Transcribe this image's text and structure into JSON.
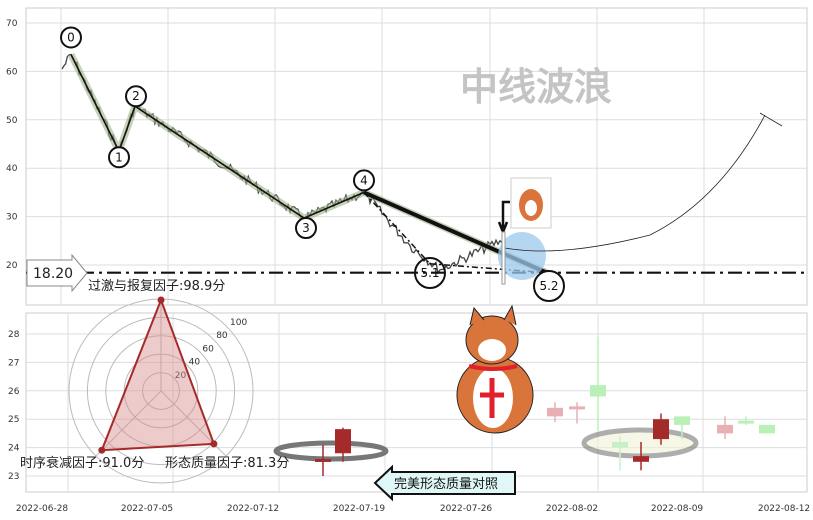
{
  "chart_data": [
    {
      "type": "line",
      "panel": "wave",
      "y_ticks": [
        "70",
        "60",
        "50",
        "40",
        "30",
        "20"
      ],
      "ylim": [
        17,
        73
      ],
      "grid": true,
      "watermark": "中线波浪",
      "wave_points": [
        {
          "label": "0",
          "value": 63.5
        },
        {
          "label": "1",
          "value": 43.5
        },
        {
          "label": "2",
          "value": 52.8
        },
        {
          "label": "3",
          "value": 29.7
        },
        {
          "label": "4",
          "value": 35.0
        },
        {
          "label": "5.1",
          "value": 18.6
        },
        {
          "label": "5.2",
          "value": 18.4
        }
      ],
      "support_line": {
        "value": 18.2,
        "label": "18.20"
      },
      "factor_text": "过激与报复因子:98.9分"
    },
    {
      "type": "candlestick",
      "panel": "kline",
      "y_ticks": [
        "28",
        "27",
        "26",
        "25",
        "24",
        "23"
      ],
      "ylim": [
        22.2,
        28.9
      ],
      "grid": true,
      "x_ticks": [
        "2022-06-28",
        "2022-07-05",
        "2022-07-12",
        "2022-07-19",
        "2022-07-26",
        "2022-08-02",
        "2022-08-09",
        "2022-08-12"
      ],
      "candles": [
        {
          "open": 23.6,
          "close": 23.5,
          "high": 24.1,
          "low": 23.0,
          "color": "#a52a2a"
        },
        {
          "open": 23.8,
          "close": 24.65,
          "high": 24.7,
          "low": 23.5,
          "color": "#a52a2a"
        },
        {
          "open": 25.1,
          "close": 25.4,
          "high": 25.6,
          "low": 24.9,
          "color": "#e8b0b4"
        },
        {
          "open": 25.35,
          "close": 25.45,
          "high": 25.6,
          "low": 24.85,
          "color": "#e8b0b4"
        },
        {
          "open": 26.2,
          "close": 25.8,
          "high": 27.9,
          "low": 24.6,
          "color": "#b8f0b8"
        },
        {
          "open": 24.2,
          "close": 24.0,
          "high": 24.4,
          "low": 23.2,
          "color": "#c8f0c8"
        },
        {
          "open": 23.7,
          "close": 23.5,
          "high": 24.2,
          "low": 23.2,
          "color": "#a52a2a"
        },
        {
          "open": 24.3,
          "close": 25.0,
          "high": 25.2,
          "low": 24.1,
          "color": "#a52a2a"
        },
        {
          "open": 25.1,
          "close": 24.8,
          "high": 25.1,
          "low": 24.3,
          "color": "#b8f0b8"
        },
        {
          "open": 24.5,
          "close": 24.8,
          "high": 25.1,
          "low": 24.3,
          "color": "#e8b0b4"
        },
        {
          "open": 24.95,
          "close": 24.85,
          "high": 25.1,
          "low": 24.8,
          "color": "#b8f0b8"
        },
        {
          "open": 24.8,
          "close": 24.5,
          "high": 24.8,
          "low": 24.5,
          "color": "#b8f0b8"
        }
      ]
    },
    {
      "type": "radar",
      "panel": "factors",
      "ring_ticks": [
        "20",
        "40",
        "60",
        "80",
        "100"
      ],
      "max": 100,
      "axes": [
        {
          "label": "过激与报复因子",
          "value": 98.9
        },
        {
          "label": "时序衰减因子",
          "value": 91.0
        },
        {
          "label": "形态质量因子",
          "value": 81.3
        }
      ],
      "texts": [
        "时序衰减因子:91.0分",
        "形态质量因子:81.3分"
      ],
      "fill": "#d98c8c",
      "stroke": "#a52a2a"
    }
  ],
  "callout": {
    "label": "完美形态质量对照"
  },
  "colors": {
    "wave_band": "#9fb38a",
    "circle_highlight": "#9cc8ec",
    "bear": "#a52a2a",
    "bull": "#b8f0b8"
  }
}
